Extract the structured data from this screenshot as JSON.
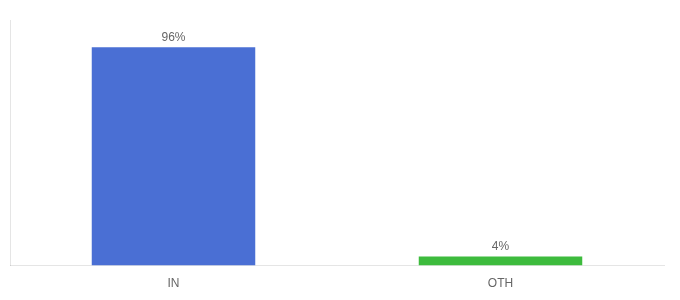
{
  "chart_data": {
    "type": "bar",
    "categories": [
      "IN",
      "OTH"
    ],
    "values": [
      96,
      4
    ],
    "value_labels": [
      "96%",
      "4%"
    ],
    "colors": [
      "#4a6fd4",
      "#3dbb3d"
    ],
    "ylim": [
      0,
      108
    ],
    "grid": false,
    "data_labels": true,
    "tick_labels": "x"
  }
}
